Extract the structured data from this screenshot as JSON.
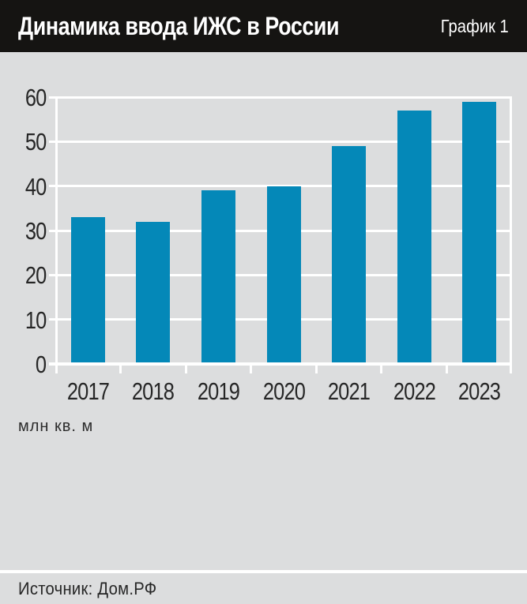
{
  "header": {
    "title": "Динамика ввода ИЖС в России",
    "tag": "График 1"
  },
  "chart_data": {
    "type": "bar",
    "categories": [
      "2017",
      "2018",
      "2019",
      "2020",
      "2021",
      "2022",
      "2023"
    ],
    "values": [
      33,
      32,
      39,
      40,
      49,
      57,
      59
    ],
    "title": "Динамика ввода ИЖС в России",
    "xlabel": "",
    "ylabel": "млн кв. м",
    "ylim": [
      0,
      60
    ],
    "ytick_step": 10,
    "grid": true,
    "legend": "none",
    "bar_color": "#0488b8",
    "background": "#dcddde",
    "gridline_color": "#ffffff"
  },
  "footer": {
    "source": "Источник: Дом.РФ"
  },
  "colors": {
    "header_bg": "#151412",
    "header_text": "#ffffff",
    "chart_bg": "#dcddde",
    "bar": "#0488b8",
    "grid": "#ffffff",
    "text": "#262626"
  }
}
